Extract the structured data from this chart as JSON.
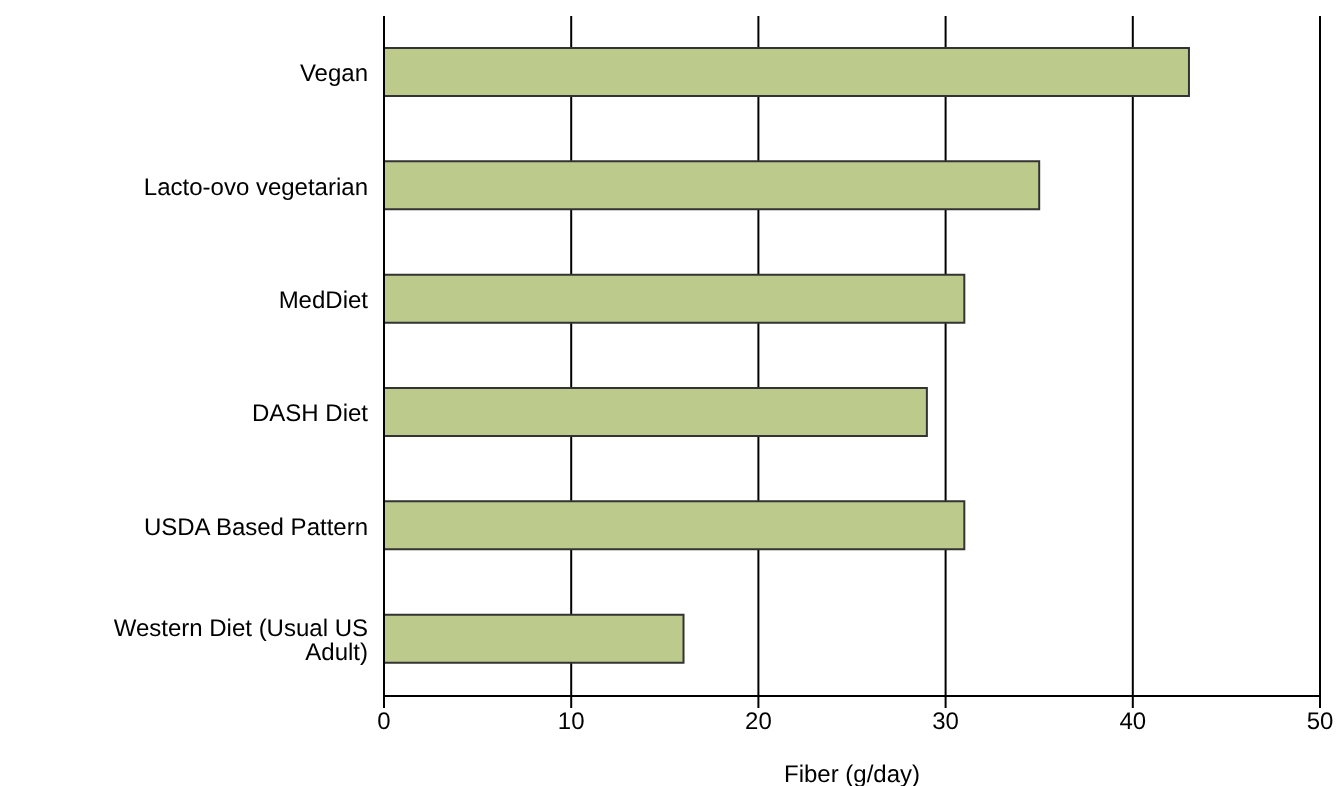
{
  "chart_data": {
    "type": "bar",
    "orientation": "horizontal",
    "xlabel": "Fiber (g/day)",
    "categories": [
      "Vegan",
      "Lacto-ovo vegetarian",
      "MedDiet",
      "DASH Diet",
      "USDA Based Pattern",
      "Western Diet (Usual US Adult)"
    ],
    "values": [
      43,
      35,
      31,
      29,
      31,
      16
    ],
    "color": "#bcca8c",
    "xlim": [
      0,
      50
    ],
    "xticks": [
      0,
      10,
      20,
      30,
      40,
      50
    ],
    "grid": "x"
  }
}
